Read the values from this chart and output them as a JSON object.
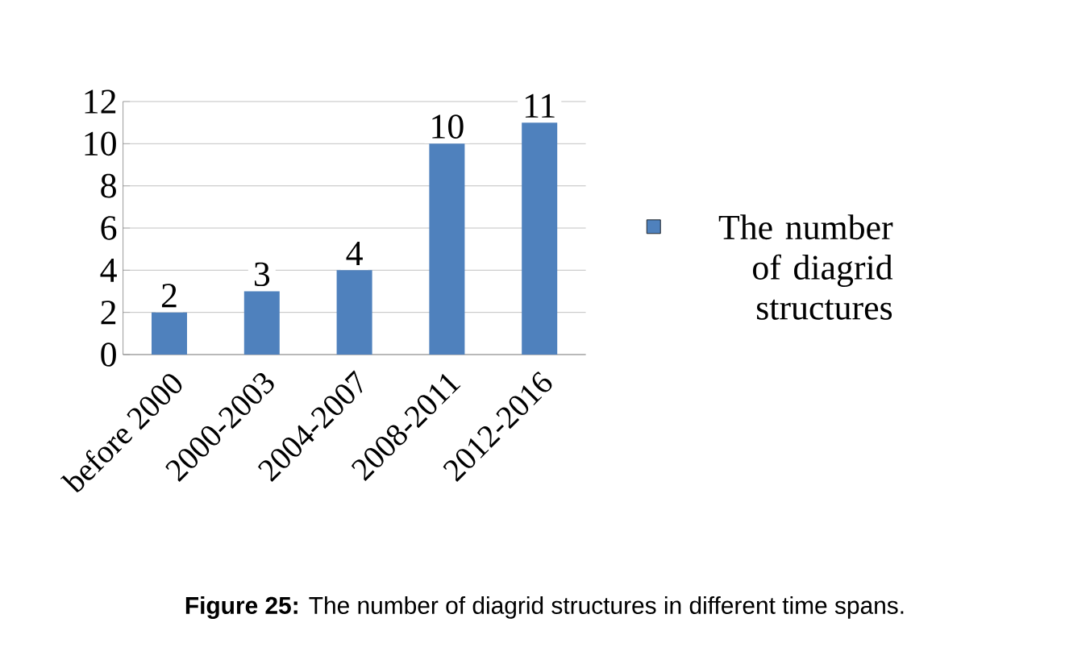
{
  "chart_data": {
    "type": "bar",
    "categories": [
      "before 2000",
      "2000-2003",
      "2004-2007",
      "2008-2011",
      "2012-2016"
    ],
    "series": [
      {
        "name": "The number of diagrid structures",
        "color": "#4f81bd",
        "values": [
          2,
          3,
          4,
          10,
          11
        ]
      }
    ],
    "ylim": [
      0,
      12
    ],
    "yticks": [
      0,
      2,
      4,
      6,
      8,
      10,
      12
    ],
    "grid": "y",
    "legend": "right",
    "data_labels": true,
    "annotations": [
      "**Figure 25:** The number of diagrid structures in different time spans."
    ]
  }
}
